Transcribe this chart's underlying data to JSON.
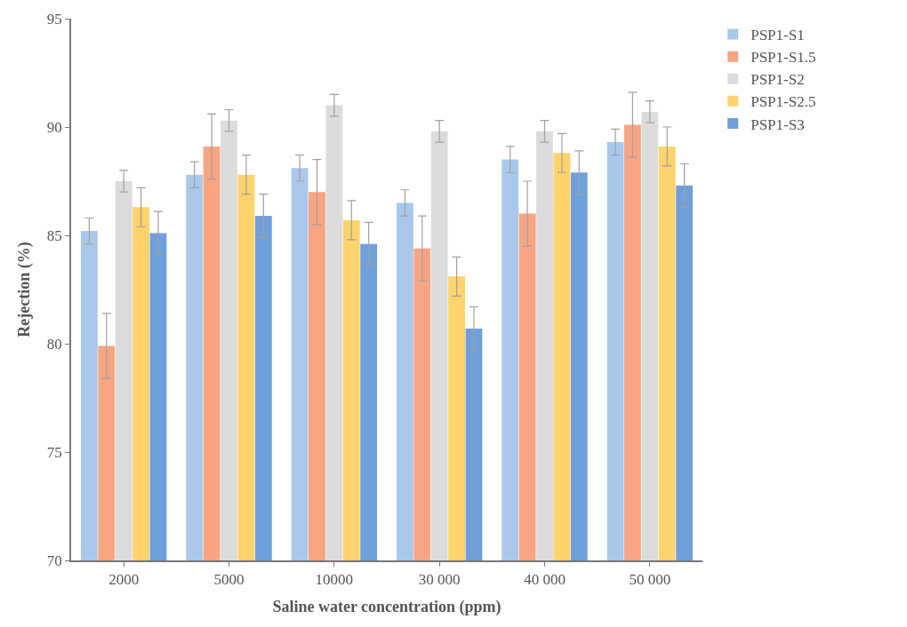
{
  "chart_data": {
    "type": "bar",
    "xlabel": "Saline water concentration (ppm)",
    "ylabel": "Rejection (%)",
    "categories": [
      "2000",
      "5000",
      "10000",
      "30 000",
      "40 000",
      "50 000"
    ],
    "series": [
      {
        "name": "PSP1-S1",
        "color": "#a9c8ec",
        "values": [
          85.2,
          87.8,
          88.1,
          86.5,
          88.5,
          89.3
        ],
        "errors": [
          0.6,
          0.6,
          0.6,
          0.6,
          0.6,
          0.6
        ]
      },
      {
        "name": "PSP1-S1.5",
        "color": "#f7a582",
        "values": [
          79.9,
          89.1,
          87.0,
          84.4,
          86.0,
          90.1
        ],
        "errors": [
          1.5,
          1.5,
          1.5,
          1.5,
          1.5,
          1.5
        ]
      },
      {
        "name": "PSP1-S2",
        "color": "#dcdcdc",
        "values": [
          87.5,
          90.3,
          91.0,
          89.8,
          89.8,
          90.7
        ],
        "errors": [
          0.5,
          0.5,
          0.5,
          0.5,
          0.5,
          0.5
        ]
      },
      {
        "name": "PSP1-S2.5",
        "color": "#fdd36b",
        "values": [
          86.3,
          87.8,
          85.7,
          83.1,
          88.8,
          89.1
        ],
        "errors": [
          0.9,
          0.9,
          0.9,
          0.9,
          0.9,
          0.9
        ]
      },
      {
        "name": "PSP1-S3",
        "color": "#6fa0dc",
        "values": [
          85.1,
          85.9,
          84.6,
          80.7,
          87.9,
          87.3
        ],
        "errors": [
          1.0,
          1.0,
          1.0,
          1.0,
          1.0,
          1.0
        ]
      }
    ],
    "ylim": [
      70,
      95
    ],
    "yticks": [
      70,
      75,
      80,
      85,
      90,
      95
    ],
    "legend": "top right"
  }
}
